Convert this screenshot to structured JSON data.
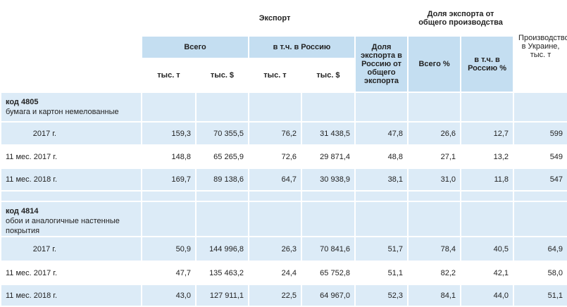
{
  "header": {
    "export": "Экспорт",
    "share": "Доля экспорта от общего производства",
    "production": "Производство в Украине, тыс. т",
    "total": "Всего",
    "russia": "в т.ч. в Россию",
    "share_russia": "Доля экспорта в Россию от общего экспорта",
    "total_pct": "Всего %",
    "russia_pct": "в т.ч. в Россию %",
    "units": [
      "тыс. т",
      "тыс. $",
      "тыс. т",
      "тыс. $"
    ]
  },
  "sections": [
    {
      "code": "код 4805",
      "name": "бумага и картон немелованные",
      "rows": [
        {
          "label": "2017 г.",
          "cells": [
            "159,3",
            "70 355,5",
            "76,2",
            "31 438,5",
            "47,8",
            "26,6",
            "12,7",
            "599"
          ]
        },
        {
          "label": "11 мес. 2017 г.",
          "cells": [
            "148,8",
            "65 265,9",
            "72,6",
            "29 871,4",
            "48,8",
            "27,1",
            "13,2",
            "549"
          ]
        },
        {
          "label": "11 мес. 2018 г.",
          "cells": [
            "169,7",
            "89 138,6",
            "64,7",
            "30 938,9",
            "38,1",
            "31,0",
            "11,8",
            "547"
          ]
        }
      ]
    },
    {
      "code": "код 4814",
      "name": "обои и аналогичные настенные покрытия",
      "rows": [
        {
          "label": "2017 г.",
          "cells": [
            "50,9",
            "144 996,8",
            "26,3",
            "70 841,6",
            "51,7",
            "78,4",
            "40,5",
            "64,9"
          ]
        },
        {
          "label": "11 мес. 2017 г.",
          "cells": [
            "47,7",
            "135 463,2",
            "24,4",
            "65 752,8",
            "51,1",
            "82,2",
            "42,1",
            "58,0"
          ]
        },
        {
          "label": "11 мес. 2018 г.",
          "cells": [
            "43,0",
            "127 911,1",
            "22,5",
            "64 967,0",
            "52,3",
            "84,1",
            "44,0",
            "51,1"
          ]
        }
      ]
    }
  ]
}
